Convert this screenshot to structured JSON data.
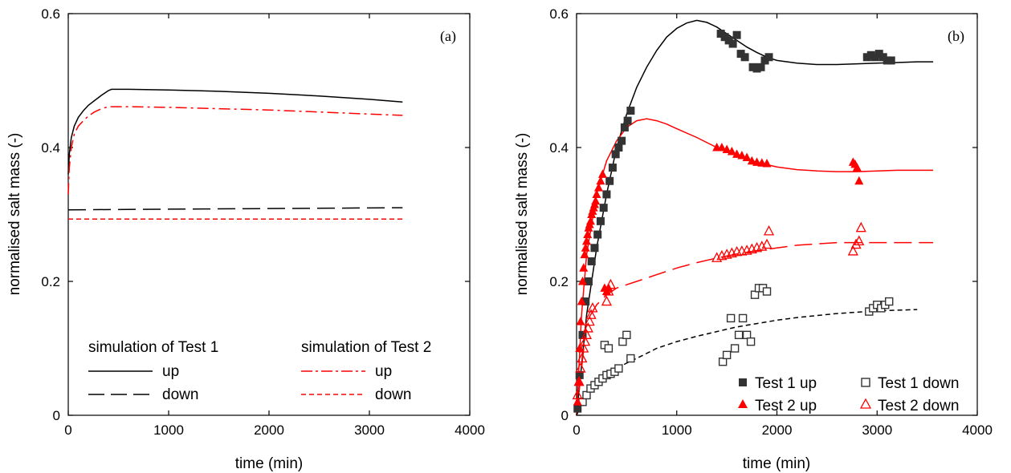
{
  "chart_data": [
    {
      "type": "line",
      "panel_label": "(a)",
      "xlabel": "time (min)",
      "ylabel": "normalised salt mass (-)",
      "xlim": [
        0,
        4000
      ],
      "ylim": [
        0,
        0.6
      ],
      "xticks": [
        0,
        1000,
        2000,
        3000,
        4000
      ],
      "yticks": [
        0,
        0.2,
        0.4,
        0.6
      ],
      "xtick_labels": [
        "0",
        "1000",
        "2000",
        "3000",
        "4000"
      ],
      "ytick_labels": [
        "0",
        "0.2",
        "0.4",
        "0.6"
      ],
      "grid": false,
      "legend": {
        "placement": "bottom",
        "group1_title": "simulation of Test 1",
        "group2_title": "simulation of Test 2"
      },
      "series": [
        {
          "name": "up",
          "group": "simulation of Test 1",
          "color": "#000000",
          "dash": "solid",
          "x": [
            0,
            10,
            30,
            60,
            100,
            150,
            200,
            260,
            330,
            400,
            430,
            600,
            1000,
            1500,
            2000,
            2500,
            3000,
            3330
          ],
          "y": [
            0.36,
            0.39,
            0.415,
            0.432,
            0.445,
            0.455,
            0.463,
            0.47,
            0.478,
            0.485,
            0.487,
            0.487,
            0.486,
            0.484,
            0.481,
            0.477,
            0.472,
            0.468
          ]
        },
        {
          "name": "down",
          "group": "simulation of Test 1",
          "color": "#000000",
          "dash": "longdash",
          "x": [
            0,
            3330
          ],
          "y": [
            0.307,
            0.31
          ]
        },
        {
          "name": "up",
          "group": "simulation of Test 2",
          "color": "#ff0000",
          "dash": "dashdot",
          "x": [
            0,
            10,
            30,
            60,
            100,
            150,
            200,
            260,
            330,
            400,
            600,
            1000,
            1500,
            2000,
            2500,
            3000,
            3330
          ],
          "y": [
            0.33,
            0.37,
            0.4,
            0.42,
            0.432,
            0.44,
            0.447,
            0.453,
            0.458,
            0.461,
            0.461,
            0.46,
            0.458,
            0.456,
            0.453,
            0.45,
            0.448
          ]
        },
        {
          "name": "down",
          "group": "simulation of Test 2",
          "color": "#ff0000",
          "dash": "shortdash",
          "x": [
            0,
            3330
          ],
          "y": [
            0.293,
            0.293
          ]
        }
      ]
    },
    {
      "type": "scatter",
      "panel_label": "(b)",
      "xlabel": "time (min)",
      "ylabel": "normalised salt mass (-)",
      "xlim": [
        0,
        4000
      ],
      "ylim": [
        0,
        0.6
      ],
      "xticks": [
        0,
        1000,
        2000,
        3000,
        4000
      ],
      "yticks": [
        0,
        0.2,
        0.4,
        0.6
      ],
      "xtick_labels": [
        "0",
        "1000",
        "2000",
        "3000",
        "4000"
      ],
      "ytick_labels": [
        "0",
        "0.2",
        "0.4",
        "0.6"
      ],
      "grid": false,
      "legend": {
        "placement": "bottom-right"
      },
      "series": [
        {
          "name": "Test 1 up",
          "color": "#333333",
          "marker": "square-filled",
          "x": [
            10,
            30,
            60,
            90,
            120,
            150,
            180,
            210,
            240,
            270,
            300,
            330,
            360,
            390,
            420,
            450,
            480,
            510,
            540,
            1440,
            1480,
            1520,
            1560,
            1600,
            1640,
            1680,
            1760,
            1800,
            1840,
            1880,
            1920,
            2900,
            2940,
            2980,
            3020,
            3060,
            3100,
            3140
          ],
          "y": [
            0.01,
            0.06,
            0.12,
            0.17,
            0.2,
            0.23,
            0.25,
            0.27,
            0.29,
            0.31,
            0.33,
            0.35,
            0.37,
            0.39,
            0.4,
            0.41,
            0.43,
            0.44,
            0.455,
            0.57,
            0.565,
            0.56,
            0.555,
            0.568,
            0.54,
            0.535,
            0.52,
            0.518,
            0.52,
            0.53,
            0.535,
            0.535,
            0.538,
            0.535,
            0.54,
            0.535,
            0.53,
            0.53
          ]
        },
        {
          "name": "Test 1 down",
          "color": "#333333",
          "marker": "square-open",
          "x": [
            60,
            100,
            140,
            180,
            220,
            260,
            300,
            340,
            380,
            420,
            280,
            320,
            460,
            500,
            540,
            1460,
            1500,
            1540,
            1580,
            1620,
            1660,
            1700,
            1740,
            1780,
            1820,
            1860,
            1900,
            2920,
            2960,
            3000,
            3040,
            3080,
            3120
          ],
          "y": [
            0.02,
            0.03,
            0.04,
            0.045,
            0.05,
            0.055,
            0.06,
            0.062,
            0.065,
            0.07,
            0.105,
            0.1,
            0.11,
            0.12,
            0.085,
            0.08,
            0.09,
            0.145,
            0.1,
            0.12,
            0.145,
            0.12,
            0.11,
            0.18,
            0.19,
            0.19,
            0.185,
            0.155,
            0.16,
            0.165,
            0.16,
            0.165,
            0.17
          ]
        },
        {
          "name": "Test 2 up",
          "color": "#ff0000",
          "marker": "triangle-filled",
          "x": [
            10,
            20,
            30,
            40,
            50,
            60,
            70,
            80,
            90,
            100,
            110,
            120,
            130,
            140,
            150,
            160,
            170,
            180,
            190,
            200,
            220,
            240,
            260,
            280,
            300,
            320,
            1400,
            1450,
            1500,
            1550,
            1600,
            1650,
            1700,
            1750,
            1800,
            1850,
            1900,
            2760,
            2780,
            2800,
            2820
          ],
          "y": [
            0.02,
            0.05,
            0.1,
            0.14,
            0.17,
            0.2,
            0.22,
            0.24,
            0.25,
            0.26,
            0.27,
            0.28,
            0.285,
            0.29,
            0.3,
            0.305,
            0.31,
            0.315,
            0.32,
            0.33,
            0.34,
            0.35,
            0.36,
            0.19,
            0.185,
            0.19,
            0.4,
            0.4,
            0.397,
            0.394,
            0.39,
            0.388,
            0.385,
            0.38,
            0.378,
            0.377,
            0.376,
            0.378,
            0.375,
            0.37,
            0.35
          ]
        },
        {
          "name": "Test 2 down",
          "color": "#ff0000",
          "marker": "triangle-open",
          "x": [
            10,
            25,
            40,
            55,
            70,
            85,
            100,
            115,
            130,
            145,
            160,
            300,
            320,
            340,
            1400,
            1450,
            1500,
            1550,
            1600,
            1650,
            1700,
            1750,
            1800,
            1850,
            1900,
            1920,
            2760,
            2790,
            2820,
            2840
          ],
          "y": [
            0.03,
            0.05,
            0.07,
            0.085,
            0.1,
            0.11,
            0.12,
            0.13,
            0.14,
            0.15,
            0.16,
            0.17,
            0.185,
            0.195,
            0.235,
            0.238,
            0.24,
            0.242,
            0.244,
            0.245,
            0.246,
            0.248,
            0.25,
            0.252,
            0.255,
            0.275,
            0.245,
            0.255,
            0.26,
            0.28
          ]
        }
      ],
      "model_curves": [
        {
          "color": "#000000",
          "dash": "solid",
          "x": [
            0,
            100,
            200,
            300,
            400,
            500,
            600,
            700,
            800,
            900,
            1000,
            1100,
            1200,
            1300,
            1400,
            1500,
            1600,
            1700,
            1800,
            1900,
            2000,
            2200,
            2400,
            2600,
            2800,
            3000,
            3200,
            3400,
            3560
          ],
          "y": [
            0.0,
            0.15,
            0.25,
            0.33,
            0.4,
            0.45,
            0.49,
            0.52,
            0.545,
            0.565,
            0.578,
            0.586,
            0.59,
            0.587,
            0.58,
            0.57,
            0.56,
            0.55,
            0.542,
            0.535,
            0.53,
            0.526,
            0.524,
            0.524,
            0.525,
            0.526,
            0.527,
            0.528,
            0.528
          ]
        },
        {
          "color": "#ff0000",
          "dash": "solid",
          "x": [
            0,
            50,
            100,
            200,
            300,
            400,
            500,
            600,
            700,
            800,
            900,
            1000,
            1200,
            1400,
            1600,
            1800,
            2000,
            2200,
            2400,
            2600,
            2800,
            3000,
            3200,
            3400,
            3560
          ],
          "y": [
            0.0,
            0.15,
            0.24,
            0.33,
            0.38,
            0.41,
            0.43,
            0.44,
            0.443,
            0.44,
            0.435,
            0.428,
            0.415,
            0.4,
            0.388,
            0.378,
            0.371,
            0.367,
            0.365,
            0.364,
            0.364,
            0.365,
            0.366,
            0.366,
            0.366
          ]
        },
        {
          "color": "#ff0000",
          "dash": "longdash",
          "x": [
            0,
            100,
            200,
            300,
            400,
            600,
            800,
            1000,
            1200,
            1400,
            1600,
            1800,
            2000,
            2200,
            2400,
            2600,
            2800,
            3000,
            3200,
            3400,
            3560
          ],
          "y": [
            0.0,
            0.14,
            0.165,
            0.18,
            0.19,
            0.2,
            0.21,
            0.22,
            0.228,
            0.235,
            0.241,
            0.246,
            0.25,
            0.254,
            0.256,
            0.258,
            0.258,
            0.258,
            0.258,
            0.258,
            0.258
          ]
        },
        {
          "color": "#000000",
          "dash": "shortdash",
          "x": [
            0,
            100,
            200,
            300,
            400,
            500,
            600,
            800,
            1000,
            1200,
            1400,
            1600,
            1800,
            2000,
            2200,
            2400,
            2600,
            2800,
            3000,
            3200,
            3400
          ],
          "y": [
            0.0,
            0.035,
            0.05,
            0.06,
            0.07,
            0.078,
            0.085,
            0.1,
            0.11,
            0.118,
            0.125,
            0.132,
            0.137,
            0.142,
            0.146,
            0.149,
            0.152,
            0.154,
            0.156,
            0.157,
            0.158
          ]
        }
      ]
    }
  ]
}
